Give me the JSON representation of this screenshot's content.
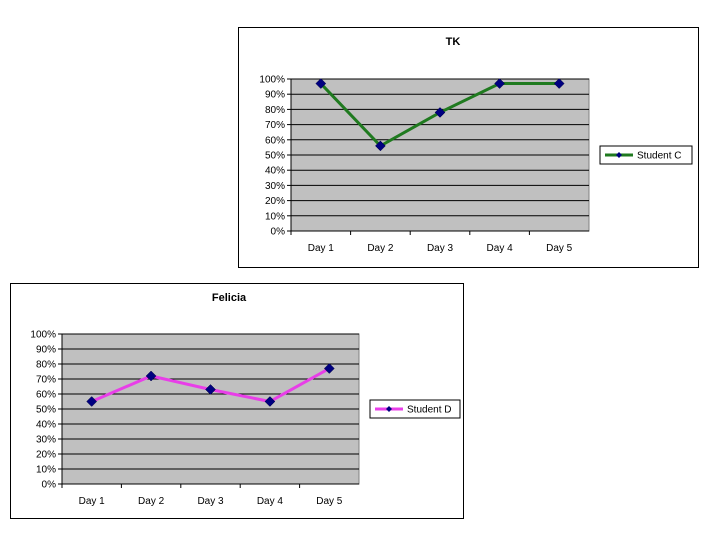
{
  "chart_data": [
    {
      "type": "line",
      "title": "TK",
      "categories": [
        "Day 1",
        "Day 2",
        "Day 3",
        "Day 4",
        "Day 5"
      ],
      "yticks": [
        "0%",
        "10%",
        "20%",
        "30%",
        "40%",
        "50%",
        "60%",
        "70%",
        "80%",
        "90%",
        "100%"
      ],
      "ylim": [
        0,
        100
      ],
      "grid": true,
      "legend_position": "right",
      "series": [
        {
          "name": "Student C",
          "values": [
            97,
            56,
            78,
            97,
            97
          ],
          "color": "#1f7a1f",
          "marker_color": "#000080"
        }
      ]
    },
    {
      "type": "line",
      "title": "Felicia",
      "categories": [
        "Day 1",
        "Day 2",
        "Day 3",
        "Day 4",
        "Day 5"
      ],
      "yticks": [
        "0%",
        "10%",
        "20%",
        "30%",
        "40%",
        "50%",
        "60%",
        "70%",
        "80%",
        "90%",
        "100%"
      ],
      "ylim": [
        0,
        100
      ],
      "grid": true,
      "legend_position": "right",
      "series": [
        {
          "name": "Student D",
          "values": [
            55,
            72,
            63,
            55,
            77
          ],
          "color": "#e83ee8",
          "marker_color": "#000080"
        }
      ]
    }
  ]
}
